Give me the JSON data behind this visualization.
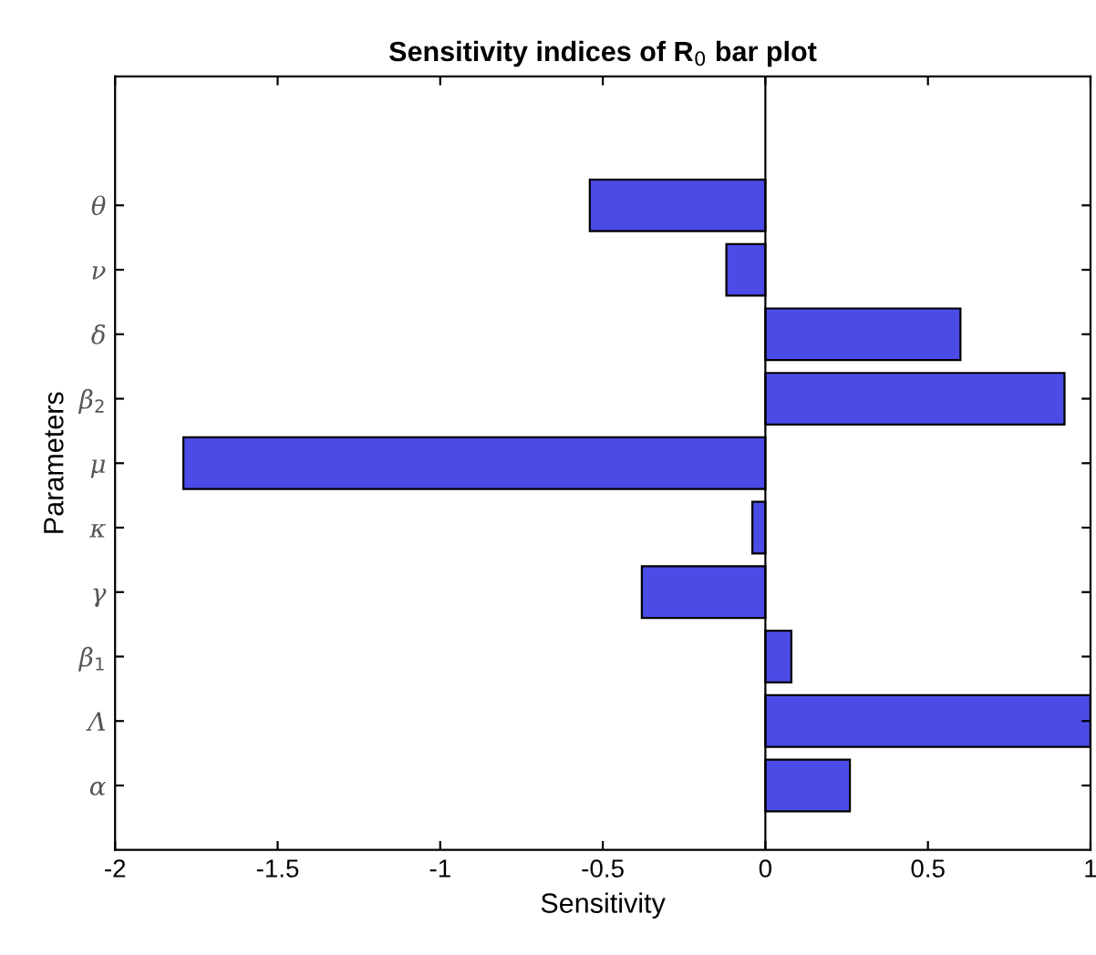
{
  "chart_data": {
    "type": "bar",
    "orientation": "horizontal",
    "title": "Sensitivity indices of R$_{0}$ bar plot",
    "xlabel": "Sensitivity",
    "ylabel": "Parameters",
    "categories": [
      null,
      "θ",
      "ν",
      "δ",
      "β$_{2}$",
      "μ",
      "κ",
      "γ",
      "β$_{1}$",
      "Λ",
      "α"
    ],
    "values": [
      null,
      -0.54,
      -0.12,
      0.6,
      0.92,
      -1.79,
      -0.04,
      -0.38,
      0.08,
      1.0,
      0.26
    ],
    "color": "#4b4be6",
    "xlim": [
      -2,
      1
    ],
    "xticks": [
      -2,
      -1.5,
      -1,
      -0.5,
      0,
      0.5,
      1
    ],
    "ref_lines": [
      {
        "axis": "x",
        "value": 0,
        "color": "#000000"
      }
    ],
    "grid": false
  }
}
